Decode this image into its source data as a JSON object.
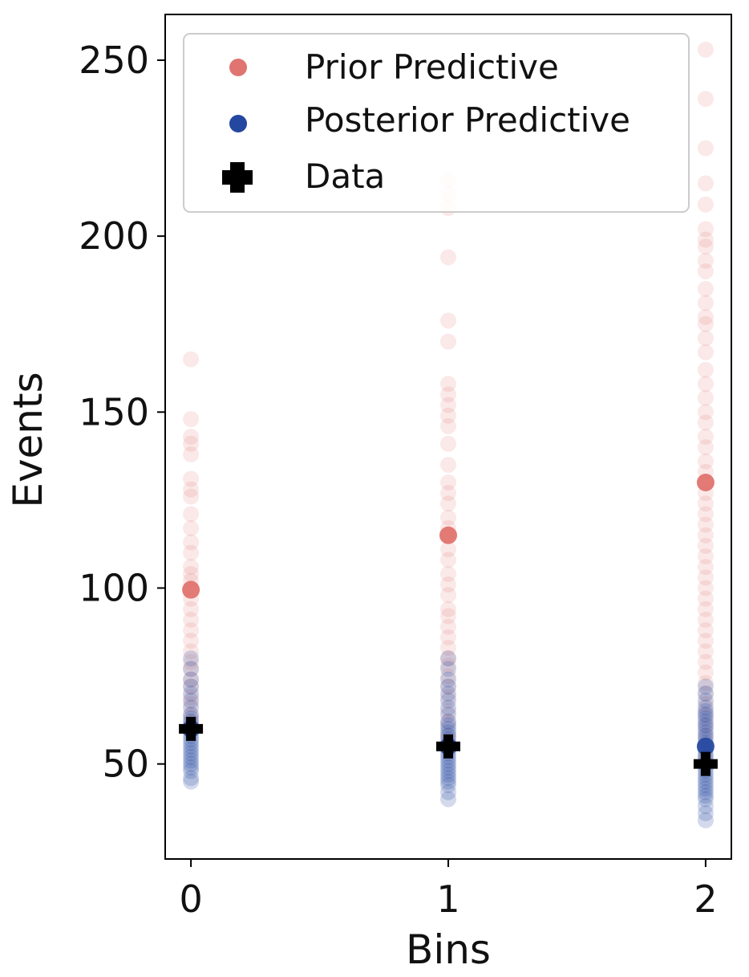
{
  "chart_data": {
    "type": "scatter",
    "xlabel": "Bins",
    "ylabel": "Events",
    "xlim": [
      -0.1,
      2.1
    ],
    "ylim": [
      23,
      263
    ],
    "x_ticks": [
      0,
      1,
      2
    ],
    "x_tick_labels": [
      "0",
      "1",
      "2"
    ],
    "y_ticks": [
      50,
      100,
      150,
      200,
      250
    ],
    "y_tick_labels": [
      "50",
      "100",
      "150",
      "200",
      "250"
    ],
    "grid": false,
    "legend_position": "top-right",
    "legend": [
      {
        "label": "Prior Predictive",
        "marker": "circle",
        "color": "#e07470"
      },
      {
        "label": "Posterior Predictive",
        "marker": "circle",
        "color": "#2447a0"
      },
      {
        "label": "Data",
        "marker": "plus",
        "color": "#000000"
      }
    ],
    "series": [
      {
        "name": "Prior Predictive",
        "color": "#e07470",
        "points": [
          {
            "x": 0,
            "values": [
              165,
              148,
              143,
              141,
              138,
              131,
              128,
              126,
              121,
              117,
              113,
              110,
              106,
              104,
              102,
              100,
              97,
              94,
              91,
              88,
              85,
              82,
              79,
              77,
              74,
              72,
              69,
              67,
              64,
              62,
              60
            ]
          },
          {
            "x": 1,
            "values": [
              216,
              212,
              208,
              194,
              176,
              170,
              158,
              155,
              152,
              149,
              146,
              141,
              135,
              130,
              127,
              124,
              120,
              117,
              115,
              111,
              108,
              104,
              101,
              98,
              94,
              92,
              89,
              86,
              83,
              80,
              78,
              75,
              72,
              69,
              65,
              62,
              58,
              55
            ]
          },
          {
            "x": 2,
            "values": [
              253,
              239,
              225,
              215,
              209,
              202,
              199,
              197,
              193,
              190,
              185,
              181,
              177,
              175,
              171,
              167,
              162,
              158,
              154,
              150,
              147,
              143,
              140,
              136,
              133,
              130,
              127,
              124,
              121,
              118,
              115,
              112,
              109,
              106,
              103,
              100,
              97,
              94,
              91,
              88,
              85,
              82,
              79,
              76,
              73,
              70,
              67,
              64,
              61,
              58,
              55,
              52
            ]
          }
        ],
        "highlighted": [
          {
            "x": 0,
            "y": 99.5
          },
          {
            "x": 1,
            "y": 115
          },
          {
            "x": 2,
            "y": 130
          }
        ]
      },
      {
        "name": "Posterior Predictive",
        "color": "#2447a0",
        "points": [
          {
            "x": 0,
            "values": [
              80,
              77,
              74,
              72,
              70,
              68,
              66,
              64,
              63,
              62,
              61,
              60,
              59,
              58,
              57,
              56,
              55,
              54,
              53,
              52,
              51,
              50,
              49,
              48,
              46,
              45
            ]
          },
          {
            "x": 1,
            "values": [
              80,
              77,
              74,
              72,
              70,
              68,
              66,
              64,
              62,
              61,
              60,
              59,
              58,
              57,
              56,
              55,
              54,
              53,
              52,
              51,
              50,
              49,
              48,
              47,
              46,
              45,
              44,
              42,
              40
            ]
          },
          {
            "x": 2,
            "values": [
              72,
              70,
              68,
              66,
              65,
              64,
              63,
              62,
              61,
              60,
              59,
              58,
              57,
              56,
              55,
              54,
              53,
              52,
              51,
              50,
              49,
              48,
              47,
              46,
              45,
              44,
              43,
              42,
              41,
              40,
              38,
              36,
              34
            ]
          }
        ],
        "highlighted": [
          {
            "x": 0,
            "y": 60
          },
          {
            "x": 1,
            "y": 55
          },
          {
            "x": 2,
            "y": 55
          }
        ]
      },
      {
        "name": "Data",
        "color": "#000000",
        "points": [
          {
            "x": 0,
            "y": 60
          },
          {
            "x": 1,
            "y": 55
          },
          {
            "x": 2,
            "y": 50
          }
        ]
      }
    ]
  }
}
